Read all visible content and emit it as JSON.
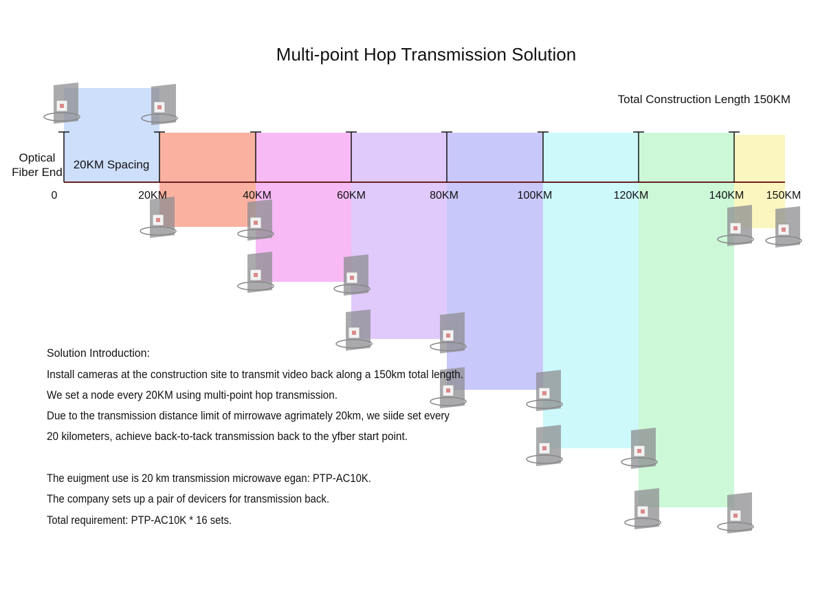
{
  "title": "Multi-point Hop Transmission Solution",
  "total_length": "Total Construction Length 150KM",
  "start_label": [
    "Optical",
    "Fiber End"
  ],
  "spacing_label": "20KM Spacing",
  "axis_labels": [
    "0",
    "20KM",
    "40KM",
    "60KM",
    "80KM",
    "100KM",
    "120KM",
    "140KM",
    "150KM"
  ],
  "introduction": {
    "heading": "Solution Introduction:",
    "paragraphs": [
      [
        "Install cameras at the construction site to transmit video back along a 150km total length.",
        "We set a node every 20KM using multi-point hop transmission.",
        "Due to the transmission distance limit of mirrowave agrimately 20km, we siide set every",
        "20 kilometers, achieve back-to-tack transmission back to the yfber start point."
      ],
      [
        "The euigment use is 20 km transmission microwave egan: PTP-AC10K.",
        "The company sets up a pair of devicers for transmission back.",
        "Total requirement: PTP-AC10K * 16 sets."
      ]
    ]
  }
}
